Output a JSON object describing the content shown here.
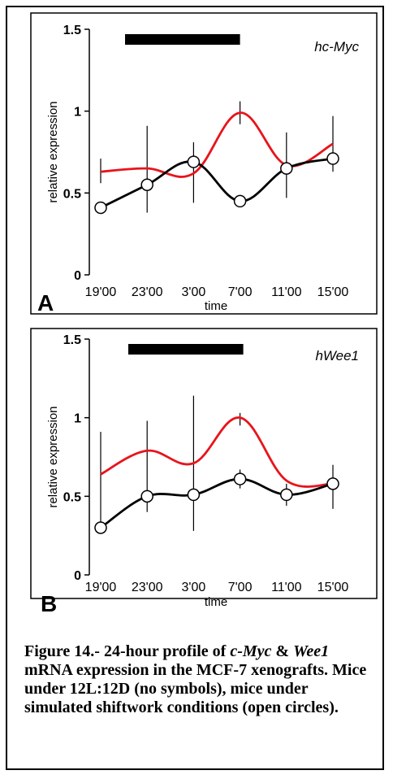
{
  "chart_data": [
    {
      "type": "line",
      "panel_label": "A",
      "gene_label": "hc-Myc",
      "xlabel": "time",
      "ylabel": "relative expression",
      "categories": [
        "19'00",
        "23'00",
        "3'00",
        "7'00",
        "11'00",
        "15'00"
      ],
      "ylim": [
        0,
        1.5
      ],
      "yticks": [
        "0",
        "0.5",
        "1",
        "1.5"
      ],
      "legend": "none",
      "series": [
        {
          "values": [
            0.63,
            0.65,
            0.62,
            0.99,
            0.67,
            0.8
          ],
          "color": "#e8141b",
          "markers": "none"
        },
        {
          "values": [
            0.41,
            0.55,
            0.69,
            0.45,
            0.65,
            0.71
          ],
          "color": "#000000",
          "markers": "open-circle",
          "error_low": [
            0.41,
            0.38,
            0.44,
            0.45,
            0.47,
            0.63
          ],
          "error_high": [
            0.41,
            0.91,
            0.81,
            0.45,
            0.87,
            0.97
          ]
        },
        {
          "values": [
            0.63,
            0.65,
            0.62,
            0.99,
            0.67,
            0.8
          ],
          "color": "#000000",
          "markers": "none",
          "role": "red-series-error",
          "error_low": [
            0.56,
            0.65,
            0.62,
            0.92,
            0.67,
            0.8
          ],
          "error_high": [
            0.71,
            0.65,
            0.62,
            1.06,
            0.67,
            0.8
          ]
        }
      ],
      "dark_bar": {
        "from_index": 0,
        "to_index": 3
      }
    },
    {
      "type": "line",
      "panel_label": "B",
      "gene_label": "hWee1",
      "xlabel": "time",
      "ylabel": "relative expression",
      "categories": [
        "19'00",
        "23'00",
        "3'00",
        "7'00",
        "11'00",
        "15'00"
      ],
      "ylim": [
        0,
        1.5
      ],
      "yticks": [
        "0",
        "0.5",
        "1",
        "1.5"
      ],
      "legend": "none",
      "series": [
        {
          "values": [
            0.64,
            0.79,
            0.71,
            1.0,
            0.6,
            0.58
          ],
          "color": "#e8141b",
          "markers": "none"
        },
        {
          "values": [
            0.3,
            0.5,
            0.51,
            0.61,
            0.51,
            0.58
          ],
          "color": "#000000",
          "markers": "open-circle",
          "error_low": [
            0.3,
            0.4,
            0.28,
            0.55,
            0.44,
            0.42
          ],
          "error_high": [
            0.91,
            0.98,
            1.14,
            0.67,
            0.58,
            0.7
          ]
        },
        {
          "values": [
            0.64,
            0.79,
            0.71,
            1.0,
            0.6,
            0.58
          ],
          "color": "#000000",
          "markers": "none",
          "role": "red-series-error",
          "error_low": [
            0.64,
            0.79,
            0.71,
            0.95,
            0.6,
            0.58
          ],
          "error_high": [
            0.64,
            0.79,
            0.71,
            1.03,
            0.6,
            0.58
          ]
        }
      ],
      "dark_bar": {
        "from_index": 0,
        "to_index": 3
      }
    }
  ],
  "caption": {
    "prefix": "Figure 14.- 24-hour profile of ",
    "gene1": "c-Myc",
    "amp": " & ",
    "gene2": "Wee1",
    "rest": " mRNA expression in the MCF-7 xenografts. Mice under 12L:12D (no symbols), mice under simulated shiftwork conditions (open circles)."
  }
}
